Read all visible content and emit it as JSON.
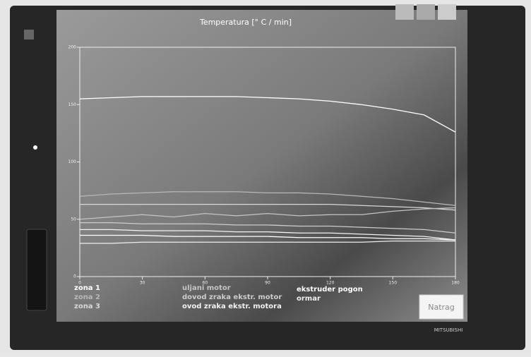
{
  "chart_data": {
    "type": "line",
    "title": "Temperatura [° C / min]",
    "x": [
      0,
      15,
      30,
      45,
      60,
      75,
      90,
      105,
      120,
      135,
      150,
      165,
      180
    ],
    "xlim": [
      0,
      180
    ],
    "xticks": [
      0,
      30,
      60,
      90,
      120,
      150,
      180
    ],
    "ylim": [
      0,
      200
    ],
    "yticks": [
      0,
      50,
      100,
      150,
      200
    ],
    "series": [
      {
        "name": "zona 1",
        "color": "#ffffff",
        "values": [
          155,
          156,
          157,
          157,
          157,
          157,
          156,
          155,
          153,
          150,
          146,
          141,
          126
        ]
      },
      {
        "name": "zona 2",
        "color": "#b8b8b8",
        "values": [
          70,
          72,
          73,
          74,
          74,
          74,
          73,
          73,
          72,
          70,
          68,
          65,
          62
        ]
      },
      {
        "name": "zona 3",
        "color": "#d8d8d8",
        "values": [
          63,
          63,
          63,
          63,
          63,
          63,
          63,
          63,
          63,
          62,
          61,
          60,
          58
        ]
      },
      {
        "name": "uljani motor",
        "color": "#c4c4c4",
        "values": [
          50,
          52,
          54,
          52,
          55,
          53,
          55,
          53,
          54,
          54,
          57,
          59,
          60
        ]
      },
      {
        "name": "dovod zraka ekstr. motor",
        "color": "#cccccc",
        "values": [
          47,
          47,
          46,
          46,
          46,
          45,
          45,
          44,
          44,
          43,
          42,
          41,
          38
        ]
      },
      {
        "name": "ovod zraka ekstr. motora",
        "color": "#f2f2f2",
        "values": [
          41,
          41,
          40,
          40,
          40,
          39,
          39,
          38,
          38,
          37,
          36,
          35,
          32
        ]
      },
      {
        "name": "ekstruder pogon",
        "color": "#ffffff",
        "values": [
          36,
          36,
          36,
          35,
          35,
          35,
          35,
          34,
          34,
          34,
          33,
          33,
          32
        ]
      },
      {
        "name": "ormar",
        "color": "#eeeeee",
        "values": [
          29,
          29,
          30,
          30,
          30,
          30,
          30,
          30,
          30,
          30,
          31,
          31,
          31
        ]
      }
    ],
    "button": "Natrag",
    "brand": "MITSUBISHI"
  }
}
